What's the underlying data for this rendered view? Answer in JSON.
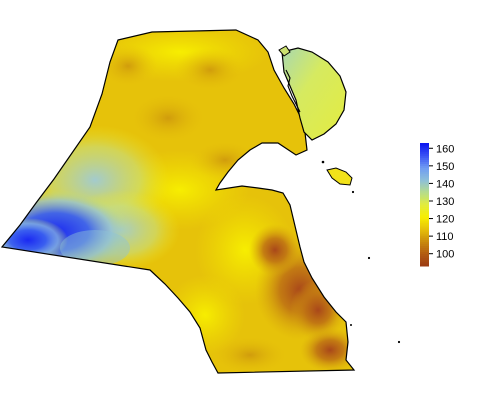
{
  "map": {
    "type": "raster-heatmap",
    "region_shape": "kuwait-outline",
    "features": [
      "mainland",
      "bubiyan-island",
      "failaka-island",
      "kuwait-bay"
    ]
  },
  "legend": {
    "placement": "right",
    "range": [
      93,
      163
    ],
    "ticks": [
      {
        "value": 160,
        "label": "160"
      },
      {
        "value": 150,
        "label": "150"
      },
      {
        "value": 140,
        "label": "140"
      },
      {
        "value": 130,
        "label": "130"
      },
      {
        "value": 120,
        "label": "120"
      },
      {
        "value": 110,
        "label": "110"
      },
      {
        "value": 100,
        "label": "100"
      }
    ],
    "color_stops": [
      {
        "value": 93,
        "color": "#9a3a12"
      },
      {
        "value": 100,
        "color": "#b25b12"
      },
      {
        "value": 107,
        "color": "#c98a0c"
      },
      {
        "value": 114,
        "color": "#e6c00a"
      },
      {
        "value": 121,
        "color": "#f7ee00"
      },
      {
        "value": 128,
        "color": "#e2ec3c"
      },
      {
        "value": 135,
        "color": "#b6dd8a"
      },
      {
        "value": 142,
        "color": "#8ec0d8"
      },
      {
        "value": 149,
        "color": "#6f9cf2"
      },
      {
        "value": 156,
        "color": "#3a52f4"
      },
      {
        "value": 163,
        "color": "#0a14f0"
      }
    ]
  }
}
